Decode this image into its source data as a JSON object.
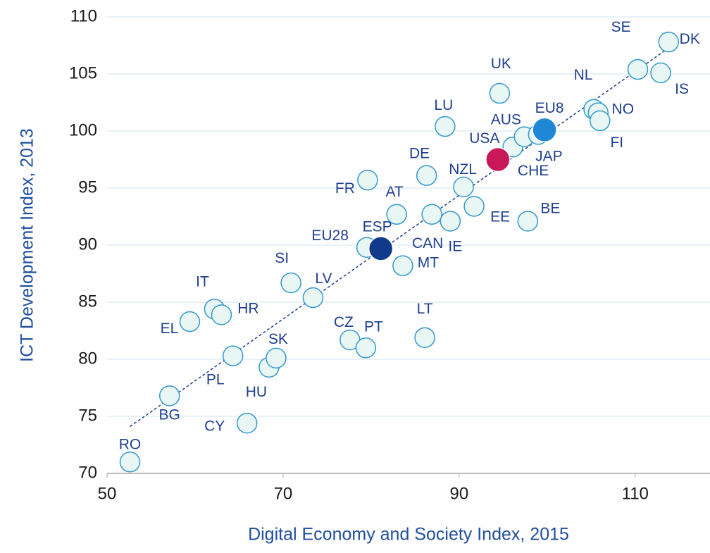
{
  "chart_data": {
    "type": "scatter",
    "xlabel": "Digital Economy and Society Index, 2015",
    "ylabel": "ICT Development Index, 2013",
    "xlim": [
      50,
      118.5
    ],
    "xticks": [
      50,
      70,
      90,
      110
    ],
    "ylim": [
      70,
      110
    ],
    "yticks": [
      70,
      75,
      80,
      85,
      90,
      95,
      100,
      105,
      110
    ],
    "grid": true,
    "points": [
      {
        "label": "RO",
        "x": 52.6,
        "y": 71.0,
        "color": "#e8f6f4"
      },
      {
        "label": "BG",
        "x": 57.1,
        "y": 76.8,
        "color": "#e8f6f4"
      },
      {
        "label": "CY",
        "x": 65.9,
        "y": 74.4,
        "color": "#e8f6f4"
      },
      {
        "label": "PL",
        "x": 64.3,
        "y": 80.3,
        "color": "#e8f6f4"
      },
      {
        "label": "HU",
        "x": 68.4,
        "y": 79.3,
        "color": "#e8f6f4"
      },
      {
        "label": "SK",
        "x": 69.2,
        "y": 80.1,
        "color": "#e8f6f4"
      },
      {
        "label": "EL",
        "x": 59.4,
        "y": 83.3,
        "color": "#e8f6f4"
      },
      {
        "label": "IT",
        "x": 62.2,
        "y": 84.4,
        "color": "#e8f6f4"
      },
      {
        "label": "HR",
        "x": 63.0,
        "y": 83.9,
        "color": "#e8f6f4"
      },
      {
        "label": "SI",
        "x": 70.9,
        "y": 86.7,
        "color": "#e8f6f4"
      },
      {
        "label": "LV",
        "x": 73.4,
        "y": 85.4,
        "color": "#e8f6f4"
      },
      {
        "label": "CZ",
        "x": 77.6,
        "y": 81.7,
        "color": "#e8f6f4"
      },
      {
        "label": "PT",
        "x": 79.4,
        "y": 81.0,
        "color": "#e8f6f4"
      },
      {
        "label": "LT",
        "x": 86.1,
        "y": 81.9,
        "color": "#e8f6f4"
      },
      {
        "label": "MT",
        "x": 83.6,
        "y": 88.2,
        "color": "#e8f6f4"
      },
      {
        "label": "EU28",
        "x": 79.5,
        "y": 89.8,
        "color": "#e8f6f4"
      },
      {
        "label": "ESP",
        "x": 81.1,
        "y": 89.7,
        "color": "#123a8c"
      },
      {
        "label": "CAN",
        "x": 86.9,
        "y": 92.7,
        "color": "#e8f6f4"
      },
      {
        "label": "IE",
        "x": 89.0,
        "y": 92.1,
        "color": "#e8f6f4"
      },
      {
        "label": "AT",
        "x": 82.9,
        "y": 92.7,
        "color": "#e8f6f4"
      },
      {
        "label": "EE",
        "x": 91.7,
        "y": 93.4,
        "color": "#e8f6f4"
      },
      {
        "label": "BE",
        "x": 97.8,
        "y": 92.1,
        "color": "#e8f6f4"
      },
      {
        "label": "FR",
        "x": 79.6,
        "y": 95.7,
        "color": "#e8f6f4"
      },
      {
        "label": "DE",
        "x": 86.3,
        "y": 96.1,
        "color": "#e8f6f4"
      },
      {
        "label": "NZL",
        "x": 90.5,
        "y": 95.1,
        "color": "#e8f6f4"
      },
      {
        "label": "LU",
        "x": 88.4,
        "y": 100.4,
        "color": "#e8f6f4"
      },
      {
        "label": "UK",
        "x": 94.6,
        "y": 103.3,
        "color": "#e8f6f4"
      },
      {
        "label": "CHE",
        "x": 96.1,
        "y": 98.6,
        "color": "#e8f6f4"
      },
      {
        "label": "AUS",
        "x": 97.4,
        "y": 99.5,
        "color": "#e8f6f4"
      },
      {
        "label": "JAP",
        "x": 99.0,
        "y": 99.7,
        "color": "#e8f6f4"
      },
      {
        "label": "USA",
        "x": 94.4,
        "y": 97.5,
        "color": "#c8185a"
      },
      {
        "label": "EU8",
        "x": 99.7,
        "y": 100.1,
        "color": "#1e88d6"
      },
      {
        "label": "NL",
        "x": 105.3,
        "y": 101.9,
        "color": "#e8f6f4"
      },
      {
        "label": "NO",
        "x": 105.8,
        "y": 101.6,
        "color": "#e8f6f4"
      },
      {
        "label": "FI",
        "x": 106.0,
        "y": 100.9,
        "color": "#e8f6f4"
      },
      {
        "label": "SE",
        "x": 110.3,
        "y": 105.4,
        "color": "#e8f6f4"
      },
      {
        "label": "IS",
        "x": 112.9,
        "y": 105.1,
        "color": "#e8f6f4"
      },
      {
        "label": "DK",
        "x": 113.8,
        "y": 107.8,
        "color": "#e8f6f4"
      }
    ],
    "trendline": {
      "x": [
        52.6,
        114.4
      ],
      "y": [
        74.1,
        107.6
      ]
    }
  }
}
